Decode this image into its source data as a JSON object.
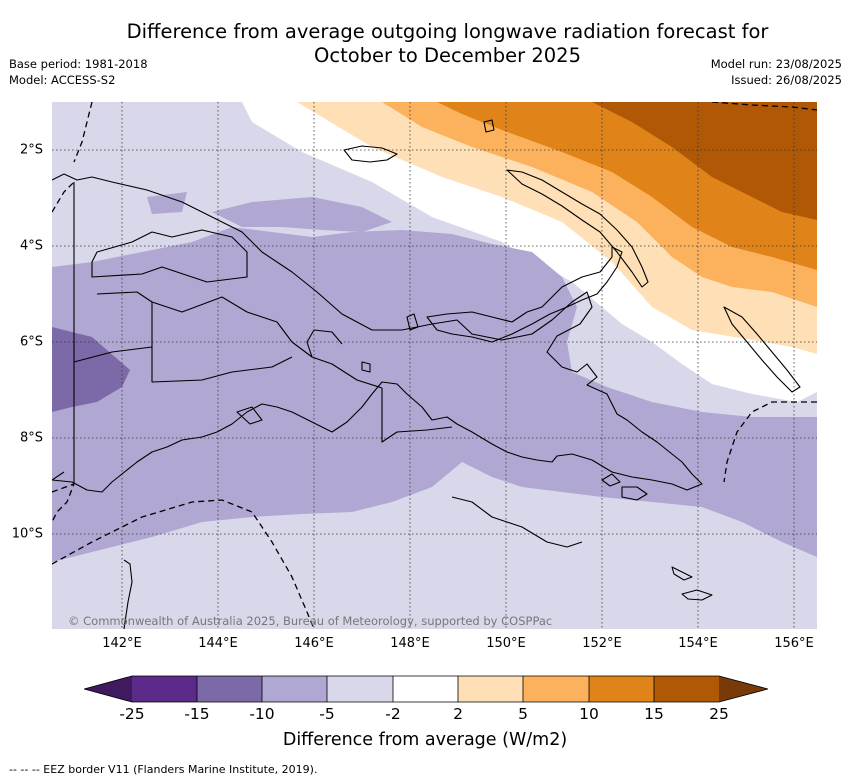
{
  "title_line1": "Difference from average outgoing longwave radiation forecast for",
  "title_line2": "October to December 2025",
  "base_period": "Base period: 1981-2018",
  "model": "Model: ACCESS-S2",
  "model_run": "Model run: 23/08/2025",
  "issued": "Issued: 26/08/2025",
  "copyright": "© Commonwealth of Australia 2025, Bureau of Meteorology, supported by COSPPac",
  "lat_labels": [
    "2°S",
    "4°S",
    "6°S",
    "8°S",
    "10°S"
  ],
  "lon_labels": [
    "142°E",
    "144°E",
    "146°E",
    "148°E",
    "150°E",
    "152°E",
    "154°E",
    "156°E"
  ],
  "colorbar": {
    "title": "Difference from average (W/m2)",
    "tick_labels": [
      "-25",
      "-15",
      "-10",
      "-5",
      "-2",
      "2",
      "5",
      "10",
      "15",
      "25"
    ],
    "colors": [
      "#3f1a5e",
      "#5b2a8a",
      "#7c6aa8",
      "#b0a8d2",
      "#d8d8ea",
      "#ffffff",
      "#ffdfb5",
      "#fcb25c",
      "#e08318",
      "#b05806",
      "#7a3a08"
    ]
  },
  "footnote": "-- -- -- EEZ border V11 (Flanders Marine Institute, 2019)."
}
